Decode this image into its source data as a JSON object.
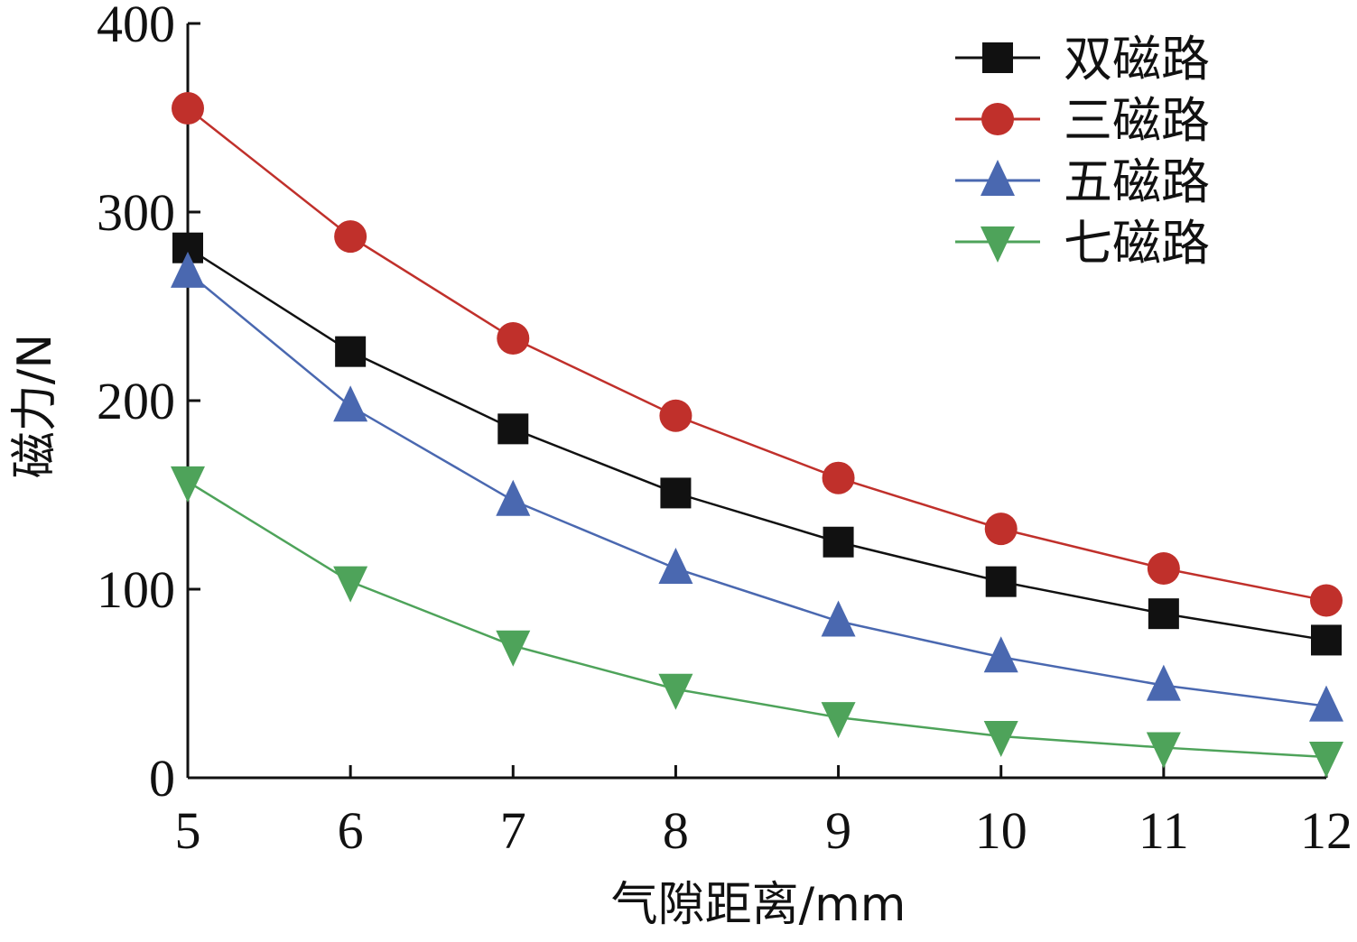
{
  "chart_data": {
    "type": "line",
    "xlabel": "气隙距离/mm",
    "ylabel": "磁力/N",
    "x": [
      5,
      6,
      7,
      8,
      9,
      10,
      11,
      12
    ],
    "xlim": [
      5,
      12
    ],
    "ylim": [
      0,
      400
    ],
    "xticks": [
      "5",
      "6",
      "7",
      "8",
      "9",
      "10",
      "11",
      "12"
    ],
    "yticks": [
      "0",
      "100",
      "200",
      "300",
      "400"
    ],
    "legend_position": "top-right",
    "grid": false,
    "series": [
      {
        "name": "双磁路",
        "marker": "square",
        "color": "#111111",
        "values": [
          281,
          226,
          185,
          151,
          125,
          104,
          87,
          73
        ]
      },
      {
        "name": "三磁路",
        "marker": "circle",
        "color": "#c0302b",
        "values": [
          355,
          287,
          233,
          192,
          159,
          132,
          111,
          94
        ]
      },
      {
        "name": "五磁路",
        "marker": "triangle-up",
        "color": "#4a68b0",
        "values": [
          268,
          197,
          147,
          111,
          83,
          64,
          49,
          38
        ]
      },
      {
        "name": "七磁路",
        "marker": "triangle-down",
        "color": "#4ea35a",
        "values": [
          157,
          104,
          70,
          47,
          32,
          22,
          16,
          11
        ]
      }
    ]
  }
}
